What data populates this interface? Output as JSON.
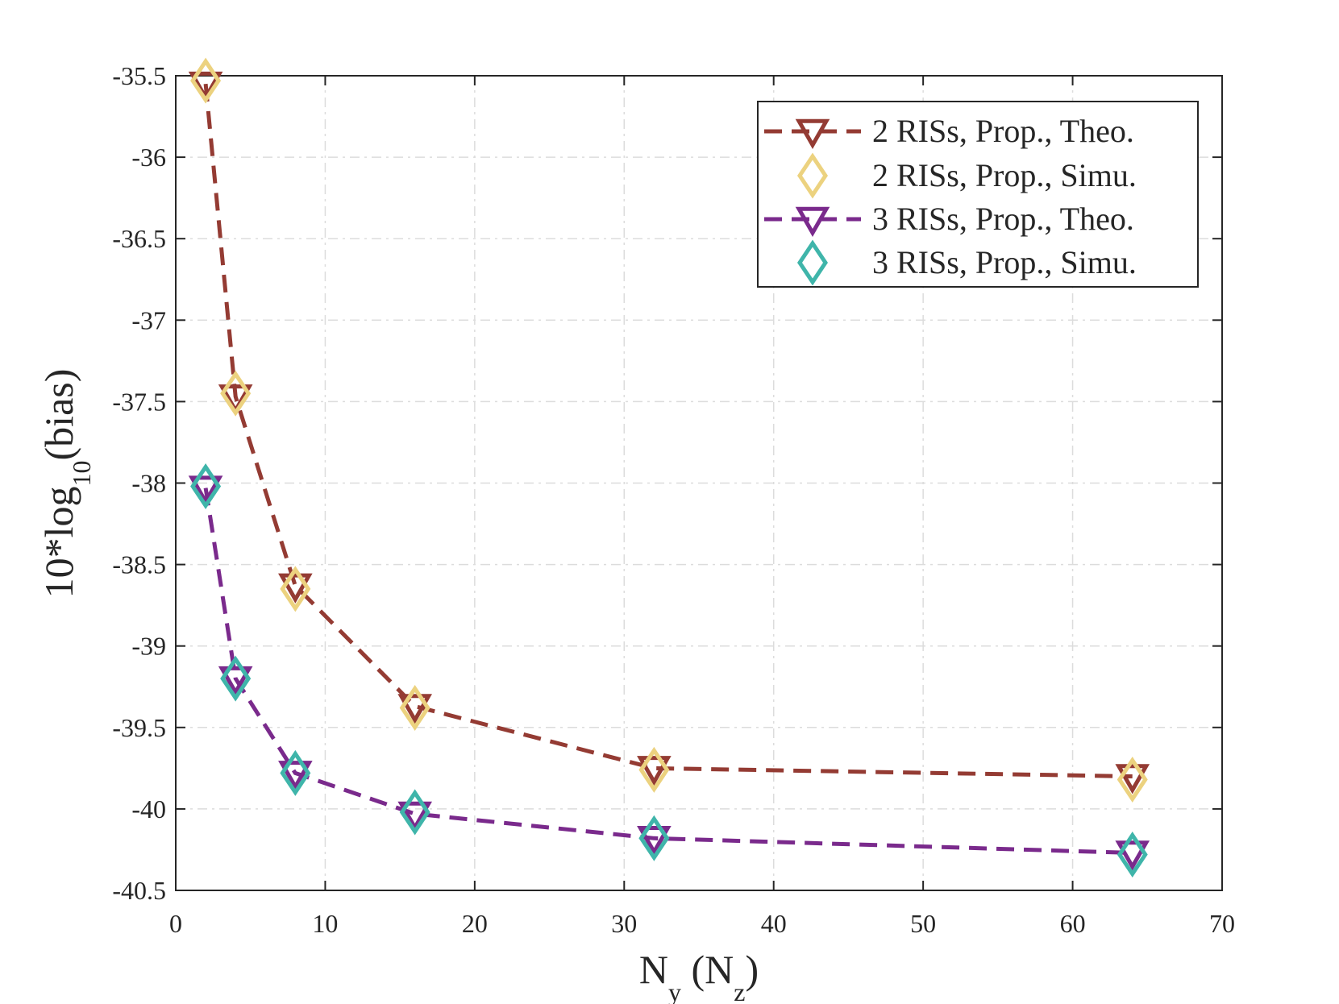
{
  "chart_data": {
    "type": "line",
    "title": "",
    "xlabel": {
      "main": "N",
      "sub1": "y",
      "mid": " (N",
      "sub2": "z",
      "end": ")"
    },
    "ylabel": {
      "main": "10*log",
      "sub": "10",
      "end": "(bias)"
    },
    "xlim": [
      0,
      70
    ],
    "ylim": [
      -40.5,
      -35.5
    ],
    "xticks": [
      0,
      10,
      20,
      30,
      40,
      50,
      60,
      70
    ],
    "yticks": [
      -35.5,
      -36,
      -36.5,
      -37,
      -37.5,
      -38,
      -38.5,
      -39,
      -39.5,
      -40,
      -40.5
    ],
    "xtick_labels": [
      "0",
      "10",
      "20",
      "30",
      "40",
      "50",
      "60",
      "70"
    ],
    "ytick_labels": [
      "-35.5",
      "-36",
      "-36.5",
      "-37",
      "-37.5",
      "-38",
      "-38.5",
      "-39",
      "-39.5",
      "-40",
      "-40.5"
    ],
    "grid": true,
    "legend_position": "top-right",
    "x": [
      2,
      4,
      8,
      16,
      32,
      64
    ],
    "series": [
      {
        "name": "2 RISs, Prop., Theo.",
        "marker": "triangle-down",
        "line": "dashed",
        "color": "#943b33",
        "values": [
          -35.55,
          -37.47,
          -38.63,
          -39.37,
          -39.75,
          -39.8
        ]
      },
      {
        "name": "2 RISs, Prop., Simu.",
        "marker": "diamond",
        "line": "none",
        "color": "#ecd27f",
        "values": [
          -35.53,
          -37.45,
          -38.65,
          -39.38,
          -39.76,
          -39.82
        ]
      },
      {
        "name": "3 RISs, Prop., Theo.",
        "marker": "triangle-down",
        "line": "dashed",
        "color": "#7a2a8c",
        "values": [
          -38.03,
          -39.2,
          -39.78,
          -40.03,
          -40.18,
          -40.27
        ]
      },
      {
        "name": "3 RISs, Prop., Simu.",
        "marker": "diamond",
        "line": "none",
        "color": "#3fb5aa",
        "values": [
          -38.02,
          -39.2,
          -39.78,
          -40.02,
          -40.18,
          -40.28
        ]
      }
    ]
  }
}
